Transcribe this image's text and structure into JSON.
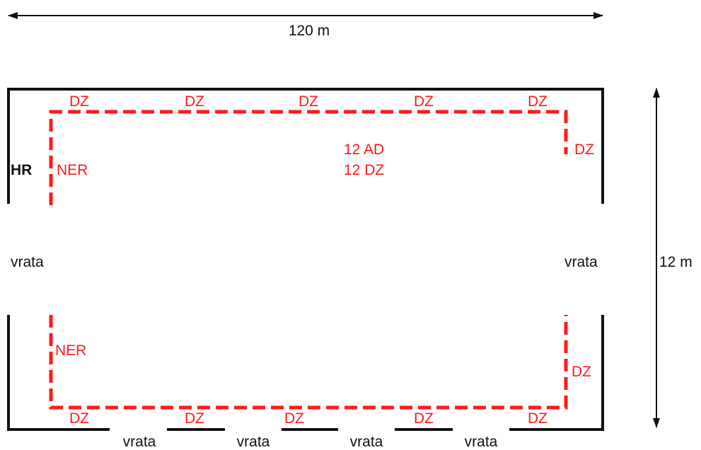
{
  "dimensions": {
    "width_label": "120 m",
    "height_label": "12 m"
  },
  "center_labels": {
    "line1": "12 AD",
    "line2": "12 DZ"
  },
  "left_side": {
    "hr": "HR",
    "ner_top": "NER",
    "ner_bottom": "NER",
    "vrata": "vrata"
  },
  "right_side": {
    "dz_top": "DZ",
    "dz_bottom": "DZ",
    "vrata": "vrata"
  },
  "top_dz": [
    "DZ",
    "DZ",
    "DZ",
    "DZ",
    "DZ"
  ],
  "bottom_dz": [
    "DZ",
    "DZ",
    "DZ",
    "DZ",
    "DZ"
  ],
  "bottom_vrata": [
    "vrata",
    "vrata",
    "vrata",
    "vrata"
  ],
  "colors": {
    "wall": "#111111",
    "dashed_route": "#ff1a1a",
    "text": "#111111",
    "red_text": "#ff1a1a"
  }
}
